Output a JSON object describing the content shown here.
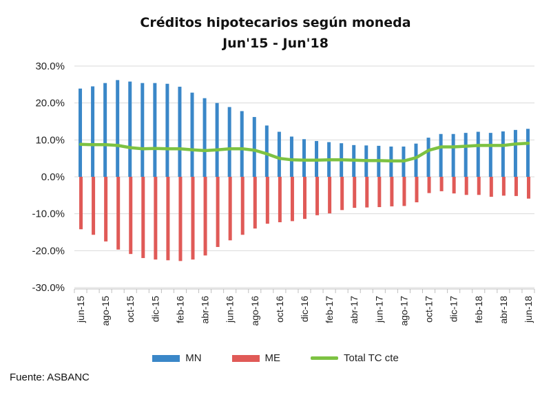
{
  "title": "Créditos hipotecarios según moneda",
  "subtitle": "Jun'15 - Jun'18",
  "source": "Fuente: ASBANC",
  "colors": {
    "mn": "#3a87c8",
    "me": "#e05a57",
    "total": "#7dc242"
  },
  "chart_data": {
    "type": "bar",
    "categories": [
      "jun-15",
      "jul-15",
      "ago-15",
      "sep-15",
      "oct-15",
      "nov-15",
      "dic-15",
      "ene-16",
      "feb-16",
      "mar-16",
      "abr-16",
      "may-16",
      "jun-16",
      "jul-16",
      "ago-16",
      "sep-16",
      "oct-16",
      "nov-16",
      "dic-16",
      "ene-17",
      "feb-17",
      "mar-17",
      "abr-17",
      "may-17",
      "jun-17",
      "jul-17",
      "ago-17",
      "sep-17",
      "oct-17",
      "nov-17",
      "dic-17",
      "ene-18",
      "feb-18",
      "mar-18",
      "abr-18",
      "may-18",
      "jun-18"
    ],
    "tick_labels": [
      "jun-15",
      "ago-15",
      "oct-15",
      "dic-15",
      "feb-16",
      "abr-16",
      "jun-16",
      "ago-16",
      "oct-16",
      "dic-16",
      "feb-17",
      "abr-17",
      "jun-17",
      "ago-17",
      "oct-17",
      "dic-17",
      "feb-18",
      "abr-18",
      "jun-18"
    ],
    "series": [
      {
        "name": "MN",
        "type": "bar",
        "values": [
          23.9,
          24.5,
          25.4,
          26.2,
          25.8,
          25.4,
          25.4,
          25.2,
          24.4,
          22.8,
          21.3,
          20.0,
          18.9,
          17.8,
          16.2,
          13.9,
          12.2,
          10.9,
          10.2,
          9.7,
          9.4,
          9.1,
          8.6,
          8.5,
          8.4,
          8.2,
          8.2,
          9.0,
          10.6,
          11.6,
          11.6,
          11.9,
          12.2,
          11.9,
          12.3,
          12.7,
          13.0
        ]
      },
      {
        "name": "ME",
        "type": "bar",
        "values": [
          -14.2,
          -15.7,
          -17.5,
          -19.7,
          -20.9,
          -22.0,
          -22.4,
          -22.6,
          -22.8,
          -22.4,
          -21.3,
          -19.0,
          -17.2,
          -15.7,
          -14.0,
          -12.7,
          -12.3,
          -12.0,
          -11.4,
          -10.4,
          -9.9,
          -9.0,
          -8.4,
          -8.3,
          -8.2,
          -8.0,
          -7.9,
          -6.9,
          -4.4,
          -3.9,
          -4.5,
          -4.9,
          -4.9,
          -5.4,
          -5.1,
          -5.2,
          -5.9
        ]
      },
      {
        "name": "Total TC cte",
        "type": "line",
        "values": [
          8.8,
          8.7,
          8.7,
          8.5,
          7.9,
          7.6,
          7.7,
          7.6,
          7.6,
          7.3,
          7.1,
          7.3,
          7.6,
          7.6,
          7.2,
          6.2,
          5.0,
          4.6,
          4.5,
          4.5,
          4.6,
          4.6,
          4.5,
          4.4,
          4.4,
          4.3,
          4.3,
          5.2,
          7.2,
          8.1,
          8.1,
          8.3,
          8.5,
          8.5,
          8.5,
          8.9,
          9.1
        ]
      }
    ],
    "ylim": [
      -30,
      30
    ],
    "yticks": [
      "30.0%",
      "20.0%",
      "10.0%",
      "0.0%",
      "-10.0%",
      "-20.0%",
      "-30.0%"
    ],
    "ytick_values": [
      30,
      20,
      10,
      0,
      -10,
      -20,
      -30
    ],
    "grid": true,
    "legend_position": "bottom"
  }
}
